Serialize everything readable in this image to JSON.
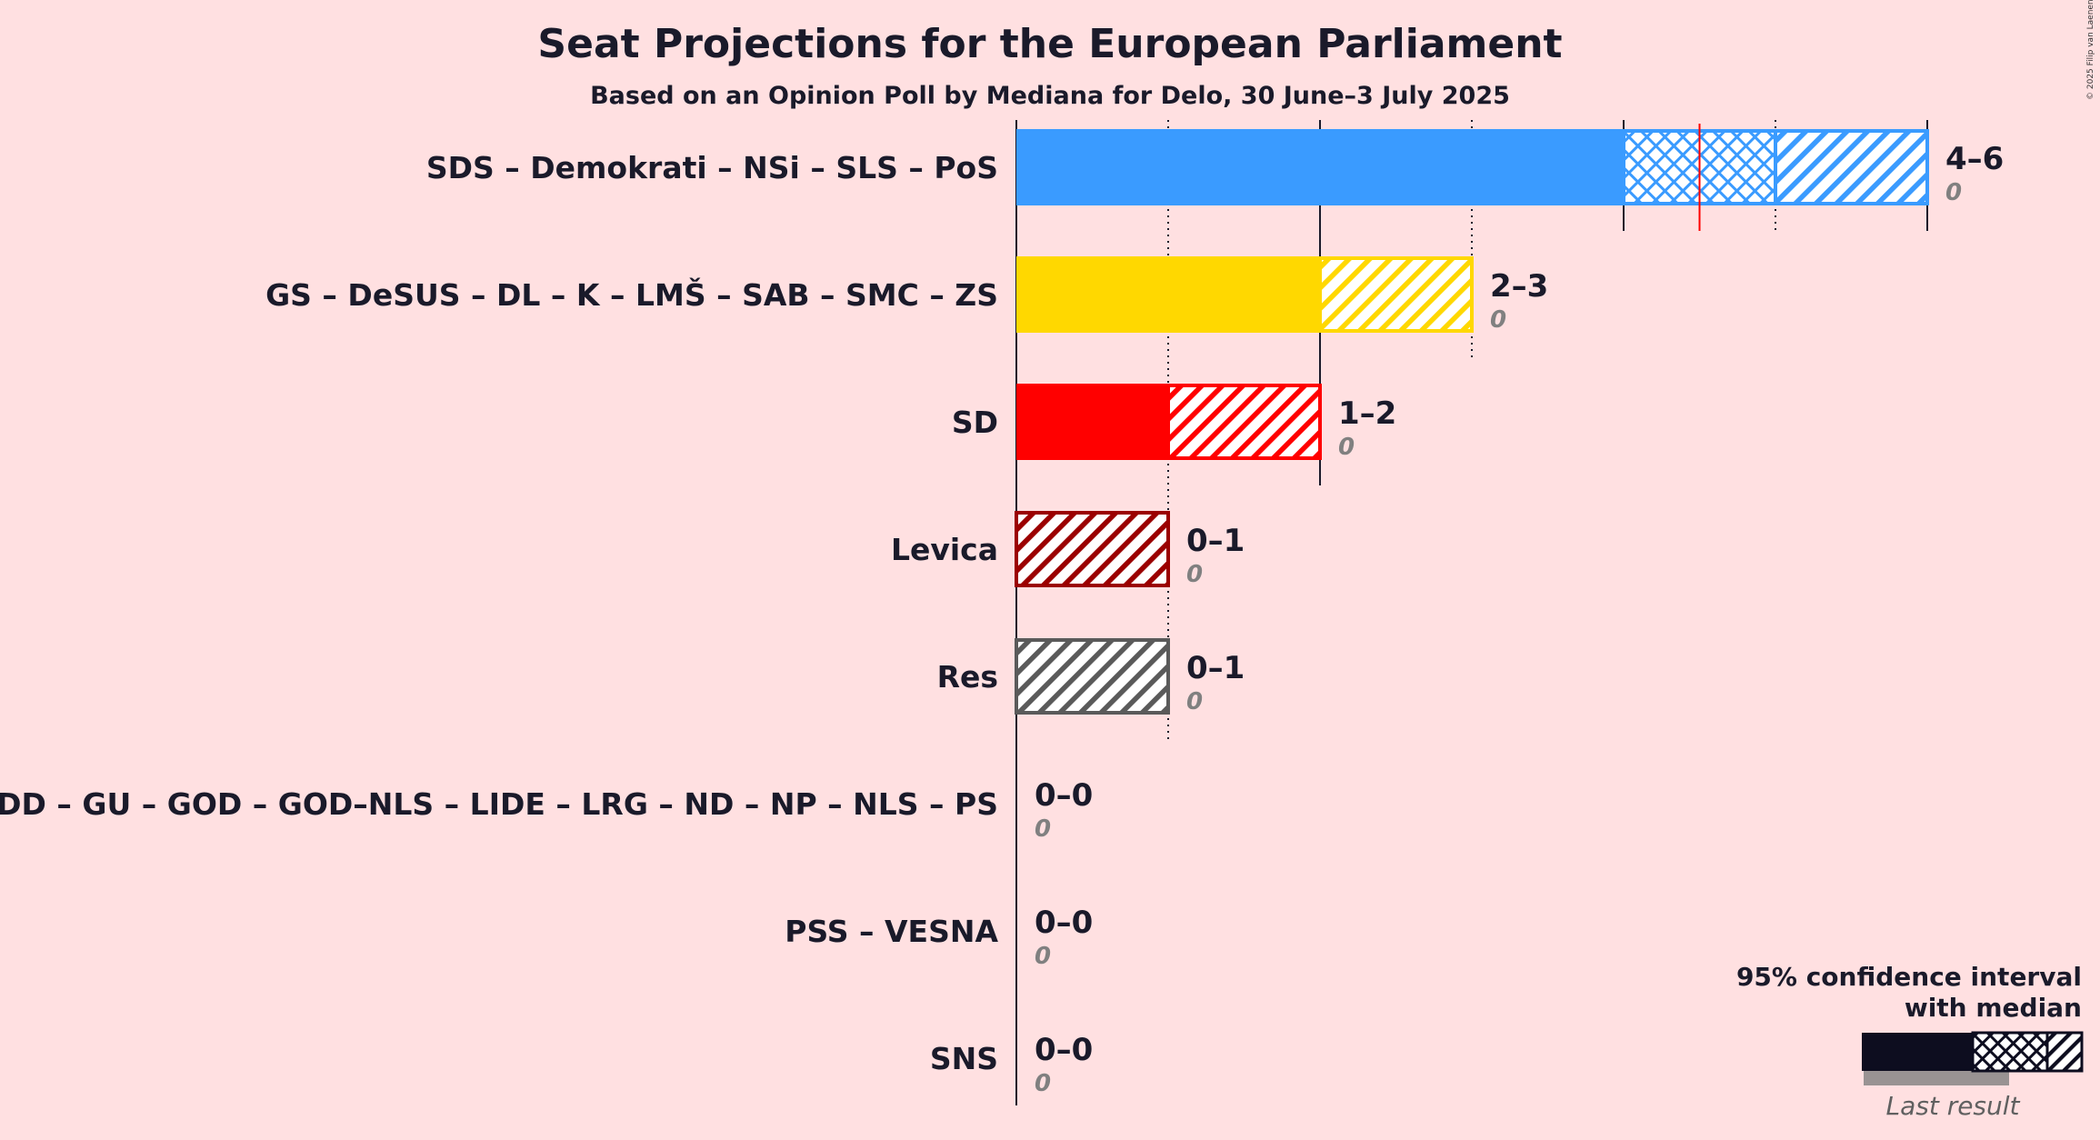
{
  "title": "Seat Projections for the European Parliament",
  "subtitle": "Based on an Opinion Poll by Mediana for Delo, 30 June–3 July 2025",
  "copyright": "© 2025 Filip van Laenen",
  "legend": {
    "ci_line1": "95% confidence interval",
    "ci_line2": "with median",
    "last_result": "Last result"
  },
  "chart_data": {
    "type": "bar",
    "title": "Seat Projections for the European Parliament",
    "subtitle": "Based on an Opinion Poll by Mediana for Delo, 30 June–3 July 2025",
    "xlim": [
      0,
      6
    ],
    "series": [
      {
        "party": "SDS – Demokrati – NSi – SLS – PoS",
        "low": 4,
        "high": 6,
        "median": 4.5,
        "ci80": [
          4,
          5
        ],
        "last": 0,
        "range_label": "4–6",
        "last_label": "0",
        "color": "#3a9bff"
      },
      {
        "party": "GS – DeSUS – DL – K – LMŠ – SAB – SMC – ZS",
        "low": 2,
        "high": 3,
        "median": null,
        "ci80": null,
        "last": 0,
        "range_label": "2–3",
        "last_label": "0",
        "color": "#ffd800"
      },
      {
        "party": "SD",
        "low": 1,
        "high": 2,
        "median": null,
        "ci80": null,
        "last": 0,
        "range_label": "1–2",
        "last_label": "0",
        "color": "#ff0000"
      },
      {
        "party": "Levica",
        "low": 0,
        "high": 1,
        "median": null,
        "ci80": null,
        "last": 0,
        "range_label": "0–1",
        "last_label": "0",
        "color": "#9b0000"
      },
      {
        "party": "Res",
        "low": 0,
        "high": 1,
        "median": null,
        "ci80": null,
        "last": 0,
        "range_label": "0–1",
        "last_label": "0",
        "color": "#5a5a5a"
      },
      {
        "party": "DD – GU – GOD – GOD–NLS – LIDE – LRG – ND – NP – NLS – PS",
        "low": 0,
        "high": 0,
        "median": null,
        "ci80": null,
        "last": 0,
        "range_label": "0–0",
        "last_label": "0",
        "color": "#1a1a2a"
      },
      {
        "party": "PSS – VESNA",
        "low": 0,
        "high": 0,
        "median": null,
        "ci80": null,
        "last": 0,
        "range_label": "0–0",
        "last_label": "0",
        "color": "#1a1a2a"
      },
      {
        "party": "SNS",
        "low": 0,
        "high": 0,
        "median": null,
        "ci80": null,
        "last": 0,
        "range_label": "0–0",
        "last_label": "0",
        "color": "#1a1a2a"
      }
    ]
  }
}
